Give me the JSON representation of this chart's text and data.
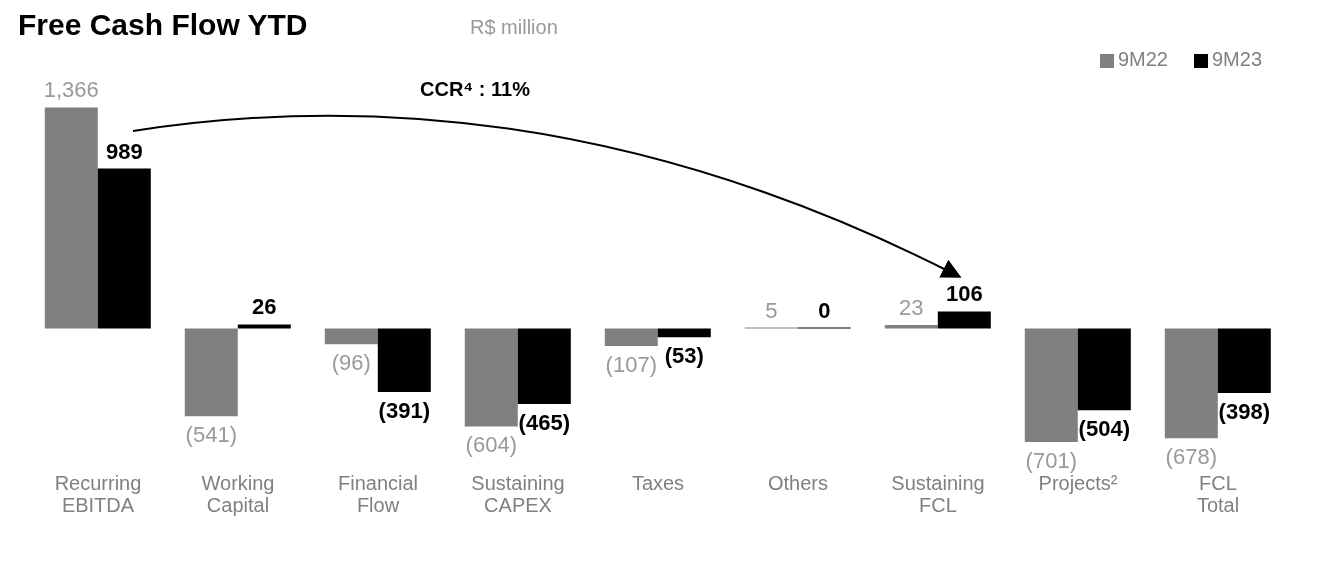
{
  "chart_data": {
    "type": "bar",
    "title": "Free Cash Flow YTD",
    "subtitle": "R$ million",
    "annotations": [
      "CCR⁴ : 11%"
    ],
    "categories": [
      "Recurring EBITDA",
      "Working Capital",
      "Financial Flow",
      "Sustaining CAPEX",
      "Taxes",
      "Others",
      "Sustaining FCL",
      "Projects²",
      "FCL Total"
    ],
    "series": [
      {
        "name": "9M22",
        "color": "#808080",
        "values": [
          1366,
          -541,
          -96,
          -604,
          -107,
          5,
          23,
          -701,
          -678
        ],
        "value_labels": [
          "1,366",
          "(541)",
          "(96)",
          "(604)",
          "(107)",
          "5",
          "23",
          "(701)",
          "(678)"
        ]
      },
      {
        "name": "9M23",
        "color": "#000000",
        "values": [
          989,
          26,
          -391,
          -465,
          -53,
          0,
          106,
          -504,
          -398
        ],
        "value_labels": [
          "989",
          "26",
          "(391)",
          "(465)",
          "(53)",
          "0",
          "106",
          "(504)",
          "(398)"
        ]
      }
    ],
    "legend": "top right"
  }
}
